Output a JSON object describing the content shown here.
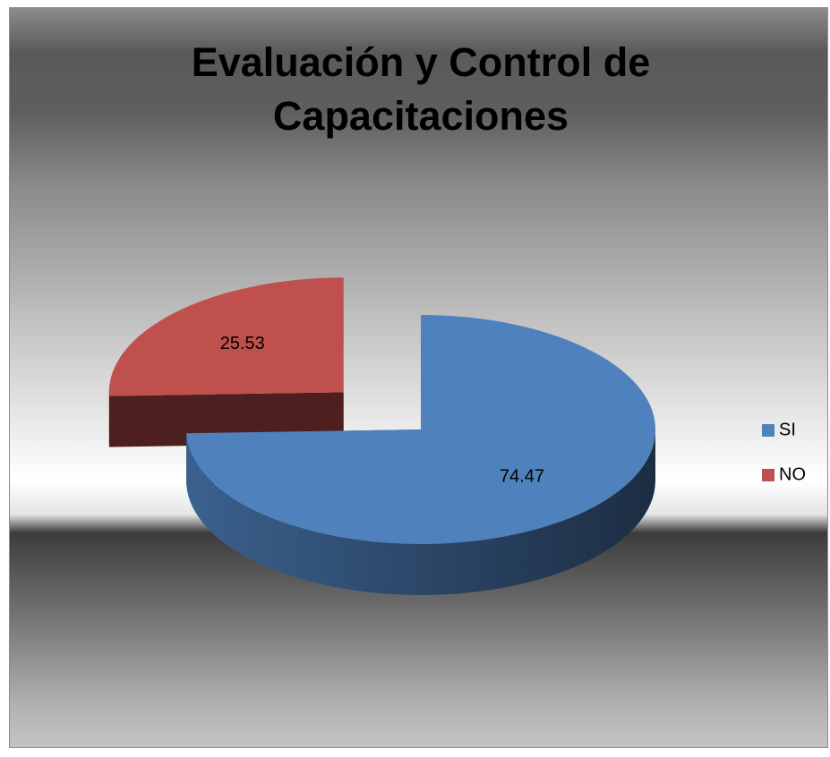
{
  "chart_data": {
    "type": "pie",
    "title": "Evaluación y Control de Capacitaciones",
    "categories": [
      "SI",
      "NO"
    ],
    "values": [
      74.47,
      25.53
    ],
    "colors": [
      "#4f81bd",
      "#c0504d"
    ],
    "legend": "right",
    "exploded": [
      false,
      true
    ]
  }
}
